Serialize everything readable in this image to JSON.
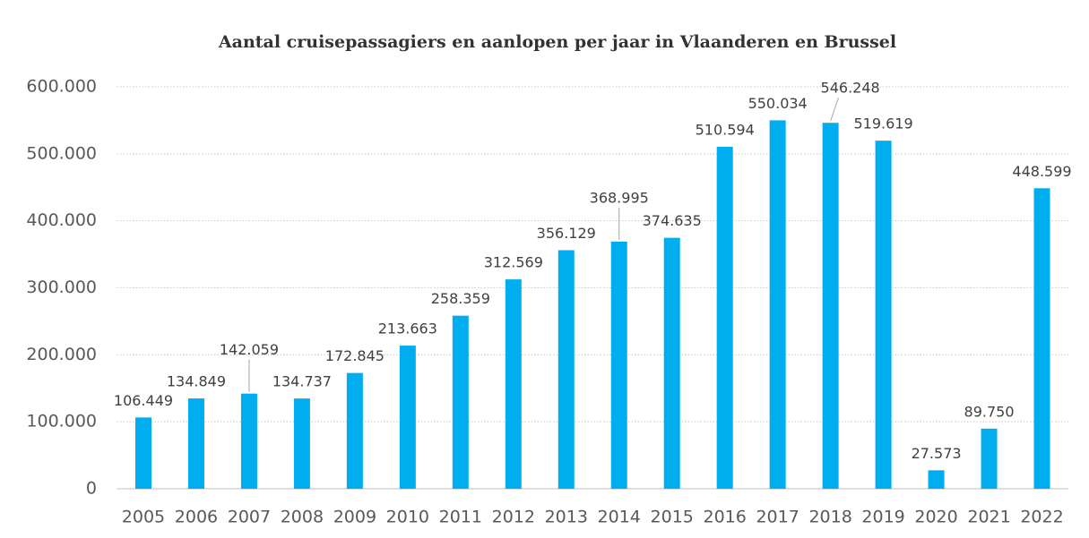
{
  "chart_data": {
    "type": "bar",
    "title": "Aantal cruisepassagiers en aanlopen per jaar in Vlaanderen en Brussel",
    "categories": [
      "2005",
      "2006",
      "2007",
      "2008",
      "2009",
      "2010",
      "2011",
      "2012",
      "2013",
      "2014",
      "2015",
      "2016",
      "2017",
      "2018",
      "2019",
      "2020",
      "2021",
      "2022"
    ],
    "values": [
      106449,
      134849,
      142059,
      134737,
      172845,
      213663,
      258359,
      312569,
      356129,
      368995,
      374635,
      510594,
      550034,
      546248,
      519619,
      27573,
      89750,
      448599
    ],
    "value_labels": [
      "106.449",
      "134.849",
      "142.059",
      "134.737",
      "172.845",
      "213.663",
      "258.359",
      "312.569",
      "356.129",
      "368.995",
      "374.635",
      "510.594",
      "550.034",
      "546.248",
      "519.619",
      "27.573",
      "89.750",
      "448.599"
    ],
    "color": "#00aeef",
    "ylim": [
      0,
      600000
    ],
    "yticks": [
      0,
      {
        "value": 100000,
        "label": "100.000"
      },
      {
        "value": 200000,
        "label": "200.000"
      },
      {
        "value": 300000,
        "label": "300.000"
      },
      {
        "value": 400000,
        "label": "400.000"
      },
      {
        "value": 500000,
        "label": "500.000"
      },
      {
        "value": 600000,
        "label": "600.000"
      }
    ],
    "grid": true
  }
}
